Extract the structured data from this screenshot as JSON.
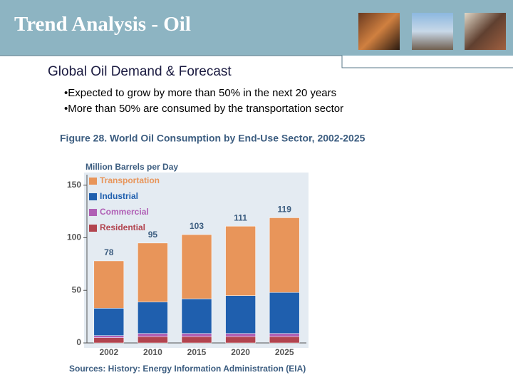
{
  "header": {
    "title": "Trend Analysis - Oil"
  },
  "slide": {
    "subtitle": "Global Oil Demand & Forecast",
    "bullets": [
      "Expected to grow by more than 50% in the next 20 years",
      "More than 50% are consumed by the transportation sector"
    ]
  },
  "chart_data": {
    "type": "bar",
    "stacked": true,
    "title": "Figure 28.  World Oil Consumption by End-Use Sector, 2002-2025",
    "y_label": "Million Barrels per Day",
    "categories": [
      "2002",
      "2010",
      "2015",
      "2020",
      "2025"
    ],
    "series": [
      {
        "name": "Transportation",
        "color": "#e8955a",
        "values": [
          45,
          56,
          61,
          66,
          71
        ]
      },
      {
        "name": "Industrial",
        "color": "#1f5fae",
        "values": [
          26,
          30,
          33,
          36,
          39
        ]
      },
      {
        "name": "Commercial",
        "color": "#b05fb5",
        "values": [
          2,
          3,
          3,
          3,
          3
        ]
      },
      {
        "name": "Residential",
        "color": "#b2444f",
        "values": [
          5,
          6,
          6,
          6,
          6
        ]
      }
    ],
    "totals": [
      78,
      95,
      103,
      111,
      119
    ],
    "ylim": [
      0,
      160
    ],
    "yticks": [
      0,
      50,
      100,
      150
    ],
    "source": "Sources: History: Energy Information Administration (EIA)"
  }
}
